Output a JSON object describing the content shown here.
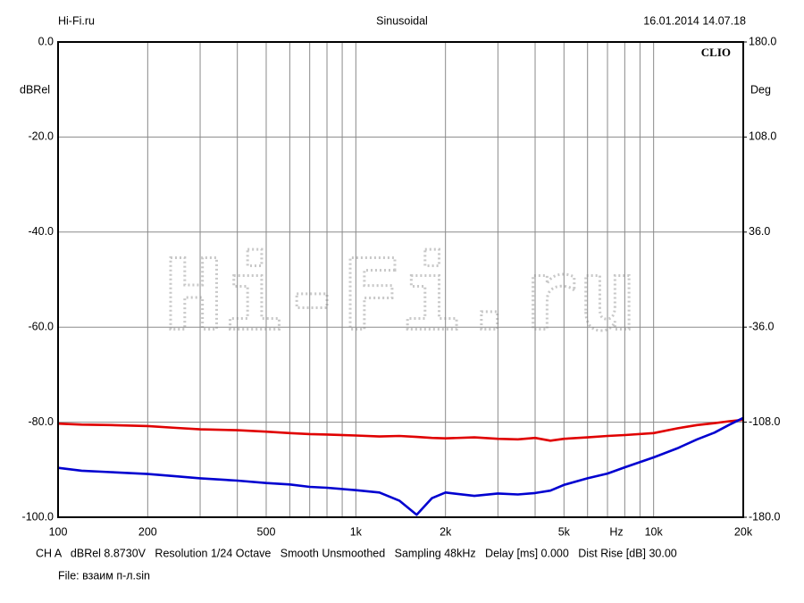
{
  "chart_data": {
    "type": "line",
    "header_left": "Hi-Fi.ru",
    "title": "Sinusoidal",
    "header_right": "16.01.2014 14.07.18",
    "brand": "CLIO",
    "watermark": "Hi-Fi.ru",
    "ylabel": "dBRel",
    "y2label": "Deg",
    "xlabel": "Hz",
    "footer": "CH A   dBRel 8.8730V   Resolution 1/24 Octave   Smooth Unsmoothed   Sampling 48kHz   Delay [ms] 0.000   Dist Rise [dB] 30.00",
    "file": "File: взаим п-л.sin",
    "xscale": "log",
    "xlim": [
      100,
      20000
    ],
    "xticks": [
      100,
      200,
      500,
      {
        "value": 1000,
        "label": "1k"
      },
      {
        "value": 2000,
        "label": "2k"
      },
      {
        "value": 5000,
        "label": "5k"
      },
      {
        "value": 10000,
        "label": "10k"
      },
      {
        "value": 20000,
        "label": "20k"
      }
    ],
    "xgrid_minor": [
      300,
      400,
      600,
      700,
      800,
      900,
      3000,
      4000,
      6000,
      7000,
      8000,
      9000
    ],
    "ylim": [
      -100,
      0
    ],
    "yticks": [
      {
        "value": -100,
        "label": "-100.0"
      },
      {
        "value": -80,
        "label": "-80.0"
      },
      {
        "value": -60,
        "label": "-60.0"
      },
      {
        "value": -40,
        "label": "-40.0"
      },
      {
        "value": -20,
        "label": "-20.0"
      },
      {
        "value": 0,
        "label": "0.0"
      }
    ],
    "y2lim": [
      -180,
      180
    ],
    "y2ticks": [
      {
        "value": -180,
        "label": "-180.0"
      },
      {
        "value": -108,
        "label": "-108.0"
      },
      {
        "value": -36,
        "label": "-36.0"
      },
      {
        "value": 36,
        "label": "36.0"
      },
      {
        "value": 108,
        "label": "108.0"
      },
      {
        "value": 180,
        "label": "180.0"
      }
    ],
    "grid": true,
    "x": [
      100,
      120,
      150,
      200,
      250,
      300,
      400,
      500,
      600,
      700,
      800,
      1000,
      1200,
      1400,
      1600,
      1800,
      2000,
      2500,
      3000,
      3500,
      4000,
      4500,
      5000,
      6000,
      7000,
      8000,
      10000,
      12000,
      14000,
      16000,
      18000,
      20000
    ],
    "series": [
      {
        "color": "#e00000",
        "values": [
          -80.3,
          -80.5,
          -80.6,
          -80.8,
          -81.2,
          -81.5,
          -81.7,
          -82.0,
          -82.3,
          -82.5,
          -82.6,
          -82.8,
          -83.0,
          -82.9,
          -83.1,
          -83.3,
          -83.4,
          -83.2,
          -83.5,
          -83.6,
          -83.3,
          -83.9,
          -83.5,
          -83.2,
          -82.9,
          -82.7,
          -82.3,
          -81.3,
          -80.6,
          -80.2,
          -79.8,
          -79.5
        ]
      },
      {
        "color": "#0000d0",
        "values": [
          -89.6,
          -90.2,
          -90.5,
          -90.9,
          -91.4,
          -91.8,
          -92.3,
          -92.8,
          -93.1,
          -93.6,
          -93.8,
          -94.3,
          -94.8,
          -96.5,
          -99.5,
          -96.0,
          -94.8,
          -95.5,
          -95.0,
          -95.2,
          -94.9,
          -94.4,
          -93.2,
          -91.8,
          -90.8,
          -89.5,
          -87.4,
          -85.5,
          -83.6,
          -82.2,
          -80.5,
          -79.1
        ]
      }
    ]
  }
}
